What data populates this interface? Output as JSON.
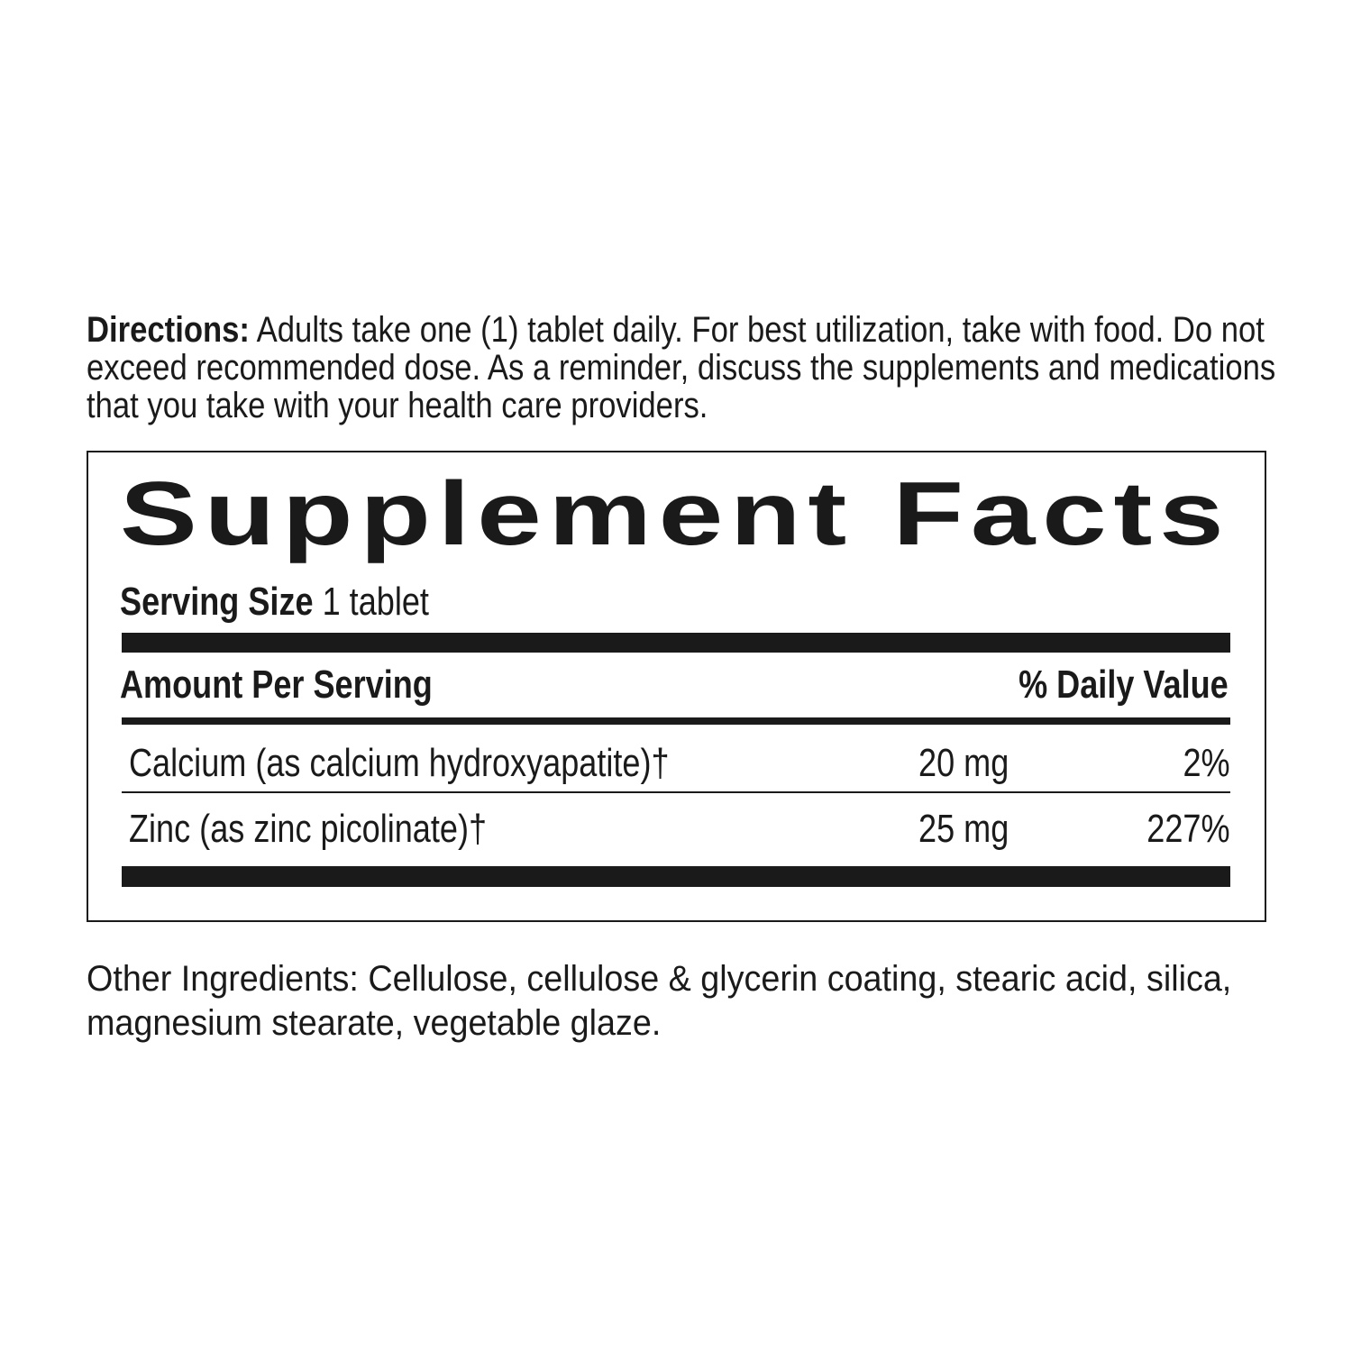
{
  "directions": {
    "label": "Directions:",
    "lines": [
      " Adults take one (1) tablet daily. For best utilization, take with food. Do not",
      "exceed recommended dose. As a reminder, discuss the supplements and medications",
      "that you take with your health care providers."
    ]
  },
  "facts": {
    "title": "Supplement Facts",
    "serving_label": "Serving Size",
    "serving_value": " 1 tablet",
    "amount_header": "Amount Per Serving",
    "dv_header": "% Daily Value",
    "rows": [
      {
        "name": "Calcium (as calcium hydroxyapatite)†",
        "amount": "20 mg",
        "dv": "2%"
      },
      {
        "name": "Zinc (as zinc picolinate)†",
        "amount": "25 mg",
        "dv": "227%"
      }
    ]
  },
  "other_ingredients": {
    "lines": [
      "Other Ingredients: Cellulose, cellulose & glycerin coating, stearic acid, silica,",
      "magnesium stearate, vegetable glaze."
    ]
  }
}
